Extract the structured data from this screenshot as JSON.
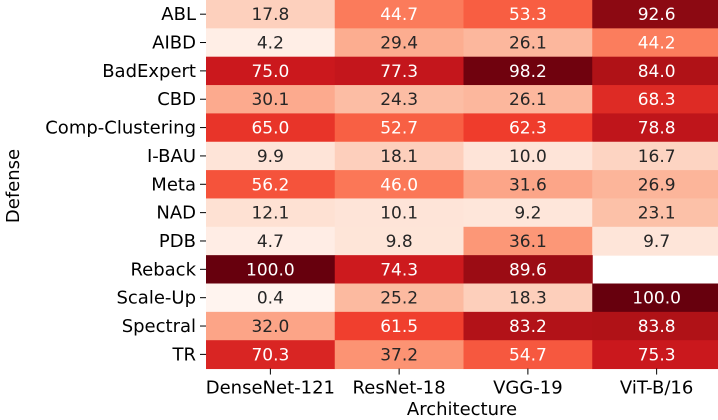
{
  "chart_data": {
    "type": "heatmap",
    "title": "",
    "xlabel": "Architecture",
    "ylabel": "Defense",
    "columns": [
      "DenseNet-121",
      "ResNet-18",
      "VGG-19",
      "ViT-B/16"
    ],
    "rows": [
      "ABL",
      "AIBD",
      "BadExpert",
      "CBD",
      "Comp-Clustering",
      "I-BAU",
      "Meta",
      "NAD",
      "PDB",
      "Reback",
      "Scale-Up",
      "Spectral",
      "TR"
    ],
    "values": [
      [
        17.8,
        44.7,
        53.3,
        92.6
      ],
      [
        4.2,
        29.4,
        26.1,
        44.2
      ],
      [
        75.0,
        77.3,
        98.2,
        84.0
      ],
      [
        30.1,
        24.3,
        26.1,
        68.3
      ],
      [
        65.0,
        52.7,
        62.3,
        78.8
      ],
      [
        9.9,
        18.1,
        10.0,
        16.7
      ],
      [
        56.2,
        46.0,
        31.6,
        26.9
      ],
      [
        12.1,
        10.1,
        9.2,
        23.1
      ],
      [
        4.7,
        9.8,
        36.1,
        9.7
      ],
      [
        100.0,
        74.3,
        89.6,
        null
      ],
      [
        0.4,
        25.2,
        18.3,
        100.0
      ],
      [
        32.0,
        61.5,
        83.2,
        83.8
      ],
      [
        70.3,
        37.2,
        54.7,
        75.3
      ]
    ],
    "value_format": "one-decimal",
    "colormap": "Reds",
    "vmin": 0,
    "vmax": 100
  },
  "colors": {
    "low": "#fff5f0",
    "high": "#67000d",
    "text_dark": "#262626",
    "text_light": "#ffffff",
    "axis": "#000000"
  }
}
